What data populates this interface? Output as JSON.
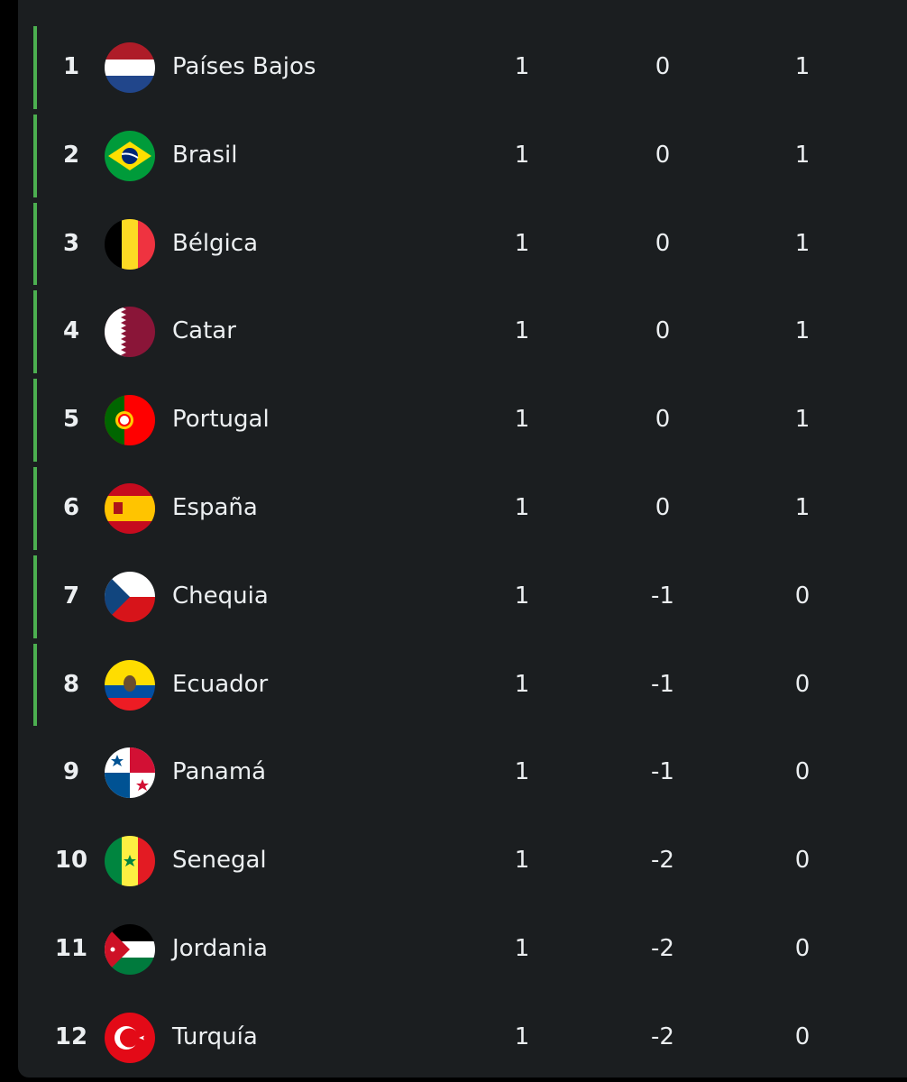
{
  "table": {
    "rows": [
      [
        "1",
        "Países Bajos",
        1,
        0,
        1
      ],
      [
        "2",
        "Brasil",
        1,
        0,
        1
      ],
      [
        "3",
        "Bélgica",
        1,
        0,
        1
      ],
      [
        "4",
        "Catar",
        1,
        0,
        1
      ],
      [
        "5",
        "Portugal",
        1,
        0,
        1
      ],
      [
        "6",
        "España",
        1,
        0,
        1
      ],
      [
        "7",
        "Chequia",
        1,
        -1,
        0
      ],
      [
        "8",
        "Ecuador",
        1,
        -1,
        0
      ],
      [
        "9",
        "Panamá",
        1,
        -1,
        0
      ],
      [
        "10",
        "Senegal",
        1,
        -2,
        0
      ],
      [
        "11",
        "Jordania",
        1,
        -2,
        0
      ],
      [
        "12",
        "Turquía",
        1,
        -2,
        0
      ]
    ]
  }
}
